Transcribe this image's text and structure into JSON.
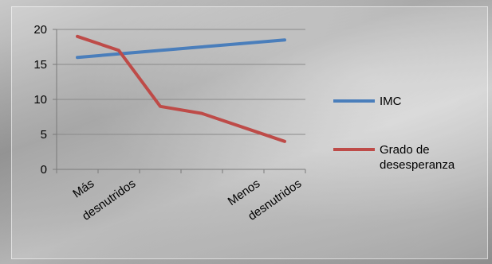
{
  "chart_data": {
    "type": "line",
    "categories": [
      "Más",
      "desnutridos",
      "",
      "",
      "Menos",
      "desnutridos"
    ],
    "series": [
      {
        "name": "IMC",
        "color": "#4a7ebb",
        "values": [
          16,
          16.5,
          17,
          17.5,
          18,
          18.5
        ]
      },
      {
        "name": "Grado de desesperanza",
        "color": "#be4b48",
        "values": [
          19,
          17,
          9,
          8,
          6,
          4
        ]
      }
    ],
    "legend": {
      "placement": "right",
      "entries": [
        {
          "lines": [
            "IMC"
          ]
        },
        {
          "lines": [
            "Grado de",
            "desesperanza"
          ]
        }
      ]
    },
    "yticks": [
      "0",
      "5",
      "10",
      "15",
      "20"
    ],
    "ylim": [
      0,
      20
    ],
    "grid": true,
    "title": "",
    "xlabel": "",
    "ylabel": ""
  }
}
